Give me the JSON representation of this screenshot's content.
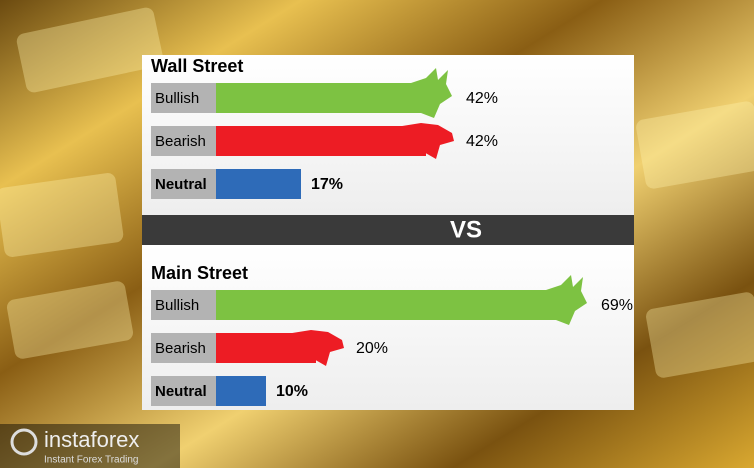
{
  "chart_data": [
    {
      "type": "bar",
      "title": "Wall Street",
      "categories": [
        "Bullish",
        "Bearish",
        "Neutral"
      ],
      "values": [
        42,
        42,
        17
      ],
      "value_labels": [
        "42%",
        "42%",
        "17%"
      ],
      "colors": [
        "#7dc242",
        "#ed1c24",
        "#2e6bb8"
      ]
    },
    {
      "type": "bar",
      "title": "Main Street",
      "categories": [
        "Bullish",
        "Bearish",
        "Neutral"
      ],
      "values": [
        69,
        20,
        10
      ],
      "value_labels": [
        "69%",
        "20%",
        "10%"
      ],
      "colors": [
        "#7dc242",
        "#ed1c24",
        "#2e6bb8"
      ]
    }
  ],
  "separator": "VS",
  "logo": {
    "name": "instaforex",
    "tagline": "Instant Forex Trading"
  }
}
